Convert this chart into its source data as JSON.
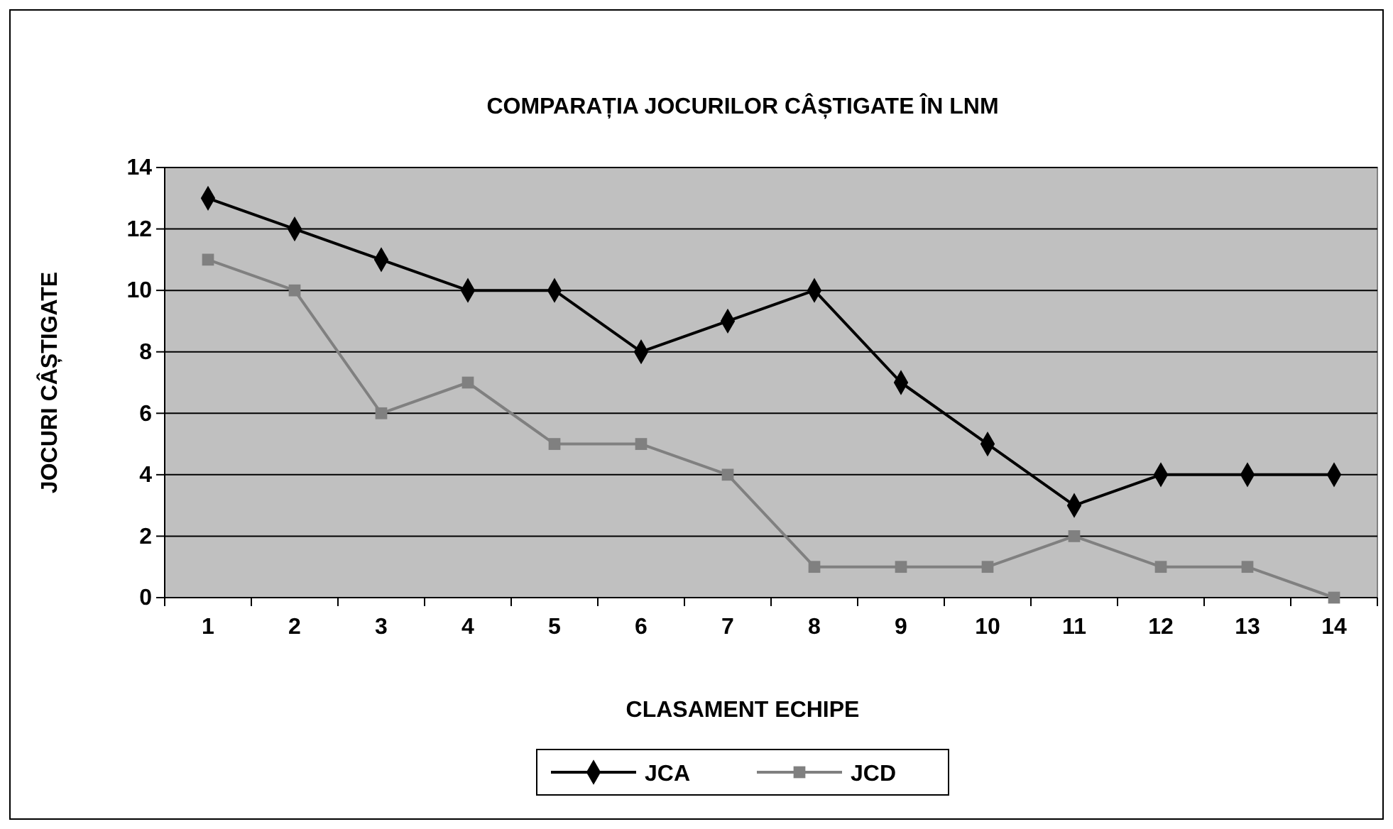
{
  "chart_data": {
    "type": "line",
    "title": "COMPARAȚIA JOCURILOR CÂȘTIGATE ÎN LNM",
    "xlabel": "CLASAMENT ECHIPE",
    "ylabel": "JOCURI CÂȘTIGATE",
    "categories": [
      "1",
      "2",
      "3",
      "4",
      "5",
      "6",
      "7",
      "8",
      "9",
      "10",
      "11",
      "12",
      "13",
      "14"
    ],
    "series": [
      {
        "name": "JCA",
        "color": "#000000",
        "marker": "diamond",
        "values": [
          13,
          12,
          11,
          10,
          10,
          8,
          9,
          10,
          7,
          5,
          3,
          4,
          4,
          4
        ]
      },
      {
        "name": "JCD",
        "color": "#808080",
        "marker": "square",
        "values": [
          11,
          10,
          6,
          7,
          5,
          5,
          4,
          1,
          1,
          1,
          2,
          1,
          1,
          0
        ]
      }
    ],
    "ylim": [
      0,
      14
    ],
    "yticks": [
      0,
      2,
      4,
      6,
      8,
      10,
      12,
      14
    ],
    "grid": "y",
    "legend": "bottom",
    "line_style": "solid"
  }
}
